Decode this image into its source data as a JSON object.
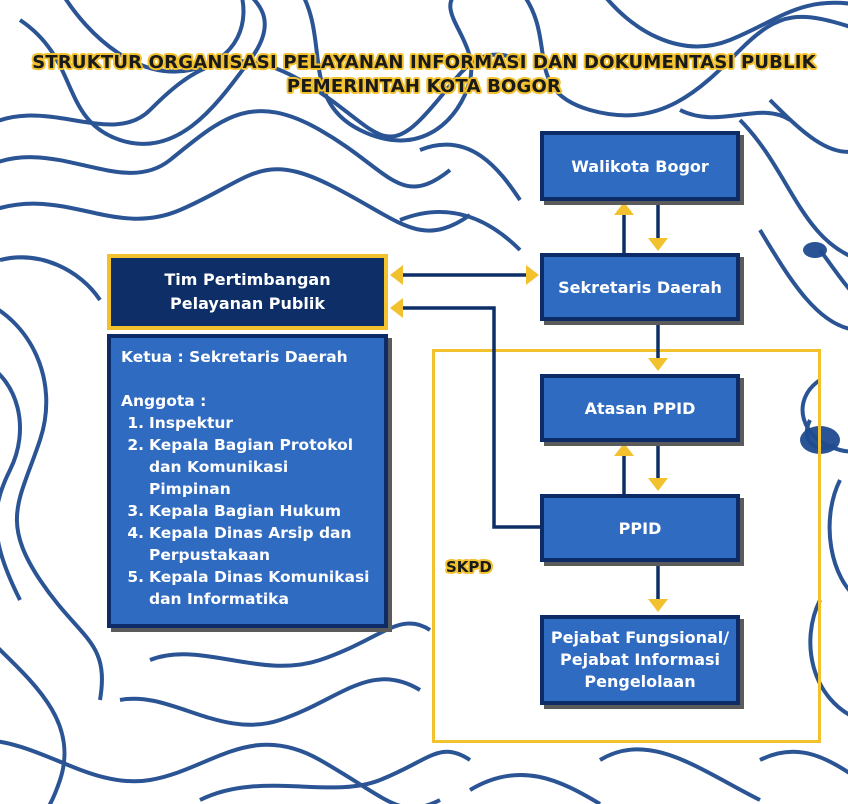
{
  "title": {
    "line1": "STRUKTUR ORGANISASI PELAYANAN INFORMASI DAN DOKUMENTASI PUBLIK",
    "line2": "PEMERINTAH KOTA BOGOR"
  },
  "boxes": {
    "walikota": "Walikota Bogor",
    "sekda": "Sekretaris Daerah",
    "atasan_ppid": "Atasan PPID",
    "ppid": "PPID",
    "pejabat": [
      "Pejabat Fungsional/",
      "Pejabat Informasi",
      "Pengelolaan"
    ]
  },
  "tim": {
    "header": [
      "Tim Pertimbangan",
      "Pelayanan Publik"
    ],
    "ketua": "Ketua : Sekretaris Daerah",
    "anggota_label": "Anggota :",
    "members": [
      {
        "num": "1.",
        "lines": [
          "Inspektur"
        ]
      },
      {
        "num": "2.",
        "lines": [
          "Kepala Bagian Protokol",
          "dan Komunikasi",
          "Pimpinan"
        ]
      },
      {
        "num": "3.",
        "lines": [
          "Kepala Bagian Hukum"
        ]
      },
      {
        "num": "4.",
        "lines": [
          "Kepala Dinas Arsip dan",
          "Perpustakaan"
        ]
      },
      {
        "num": "5.",
        "lines": [
          "Kepala Dinas Komunikasi",
          "dan Informatika"
        ]
      }
    ]
  },
  "skpd_label": "SKPD",
  "colors": {
    "box_fill": "#2f6bc1",
    "box_border": "#0d2b66",
    "header_fill": "#0d2e66",
    "accent_yellow": "#f2c12e",
    "connector": "#0d2e66",
    "background_lines": "#1f4b8f"
  }
}
